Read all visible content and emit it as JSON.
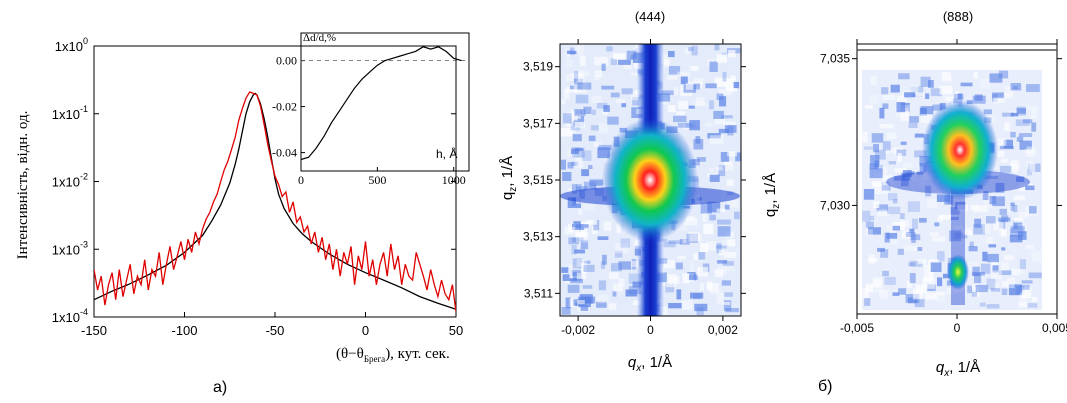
{
  "chart_data": [
    {
      "type": "line",
      "panel_label": "a)",
      "ylabel": "Інтенсивність, відн. од.",
      "xlabel_prefix": "(θ−θ",
      "xlabel_subscript": "Брега",
      "xlabel_suffix": "), кут. сек.",
      "xlim": [
        -150,
        50
      ],
      "ylim": [
        0.0001,
        1
      ],
      "yscale": "log",
      "xticks": [
        "-150",
        "-100",
        "-50",
        "0",
        "50"
      ],
      "yticks": [
        {
          "base": "1x10",
          "exp": "0"
        },
        {
          "base": "1x10",
          "exp": "-1"
        },
        {
          "base": "1x10",
          "exp": "-2"
        },
        {
          "base": "1x10",
          "exp": "-3"
        },
        {
          "base": "1x10",
          "exp": "-4"
        }
      ],
      "series": [
        {
          "color": "#000000",
          "x": [
            -150,
            -140,
            -130,
            -120,
            -110,
            -100,
            -90,
            -85,
            -80,
            -75,
            -72,
            -70,
            -68,
            -66,
            -64,
            -62,
            -61,
            -60,
            -58,
            -56,
            -54,
            -52,
            -50,
            -48,
            -45,
            -40,
            -35,
            -30,
            -20,
            -10,
            0,
            10,
            20,
            30,
            40,
            50
          ],
          "y": [
            0.00018,
            0.00024,
            0.00031,
            0.00042,
            0.00058,
            0.0009,
            0.0016,
            0.0026,
            0.0045,
            0.0095,
            0.018,
            0.03,
            0.055,
            0.1,
            0.15,
            0.19,
            0.2,
            0.19,
            0.14,
            0.085,
            0.045,
            0.022,
            0.011,
            0.0065,
            0.004,
            0.0024,
            0.0017,
            0.0013,
            0.00085,
            0.0006,
            0.00045,
            0.00035,
            0.00027,
            0.0002,
            0.00016,
            0.00013
          ]
        },
        {
          "color": "#e00000",
          "x": [
            -150,
            -148,
            -146,
            -144,
            -142,
            -140,
            -138,
            -136,
            -134,
            -132,
            -130,
            -128,
            -126,
            -124,
            -122,
            -120,
            -118,
            -116,
            -114,
            -112,
            -110,
            -108,
            -106,
            -104,
            -102,
            -100,
            -98,
            -96,
            -94,
            -92,
            -90,
            -88,
            -86,
            -84,
            -82,
            -80,
            -78,
            -76,
            -74,
            -72,
            -70,
            -68,
            -66,
            -64,
            -62,
            -60,
            -58,
            -56,
            -54,
            -52,
            -50,
            -48,
            -46,
            -44,
            -42,
            -40,
            -38,
            -36,
            -34,
            -32,
            -30,
            -28,
            -26,
            -24,
            -22,
            -20,
            -18,
            -16,
            -14,
            -12,
            -10,
            -8,
            -6,
            -4,
            -2,
            0,
            2,
            4,
            6,
            8,
            10,
            12,
            14,
            16,
            18,
            20,
            22,
            24,
            26,
            28,
            30,
            32,
            34,
            36,
            38,
            40,
            42,
            44,
            46,
            48,
            50
          ],
          "y": [
            0.0005,
            0.00025,
            0.0004,
            0.00015,
            0.0003,
            0.00045,
            0.00018,
            0.0005,
            0.0002,
            0.00035,
            0.0006,
            0.00022,
            0.0004,
            0.0003,
            0.0007,
            0.00025,
            0.0005,
            0.0004,
            0.0009,
            0.0003,
            0.0006,
            0.0011,
            0.0005,
            0.0008,
            0.0013,
            0.0007,
            0.0014,
            0.0009,
            0.0018,
            0.0012,
            0.002,
            0.0028,
            0.0035,
            0.005,
            0.0065,
            0.01,
            0.015,
            0.02,
            0.03,
            0.045,
            0.08,
            0.12,
            0.17,
            0.21,
            0.2,
            0.19,
            0.13,
            0.07,
            0.035,
            0.02,
            0.012,
            0.009,
            0.006,
            0.007,
            0.0035,
            0.005,
            0.0025,
            0.003,
            0.0018,
            0.0022,
            0.0012,
            0.0018,
            0.0009,
            0.0015,
            0.0007,
            0.0012,
            0.0005,
            0.001,
            0.0004,
            0.0009,
            0.0006,
            0.0011,
            0.0003,
            0.0008,
            0.0005,
            0.0013,
            0.0004,
            0.0007,
            0.0003,
            0.0006,
            0.0009,
            0.0004,
            0.0012,
            0.0005,
            0.0008,
            0.0003,
            0.0006,
            0.0004,
            0.00035,
            0.0009,
            0.0006,
            0.0004,
            0.00025,
            0.0005,
            0.0003,
            0.0002,
            0.00035,
            0.00022,
            0.00018,
            0.0003,
            0.00012
          ]
        }
      ],
      "inset": {
        "type": "line",
        "ylabel": "Δd/d,%",
        "xlabel": "h, Å",
        "xlim": [
          0,
          1100
        ],
        "ylim": [
          -0.048,
          0.012
        ],
        "xticks": [
          "0",
          "500",
          "1000"
        ],
        "yticks": [
          "0.00",
          "-0.02",
          "-0.04"
        ],
        "reference_line": 0,
        "series": [
          {
            "color": "#000000",
            "x": [
              0,
              50,
              100,
              150,
              200,
              250,
              300,
              350,
              400,
              450,
              500,
              550,
              600,
              650,
              700,
              750,
              800,
              850,
              900,
              950,
              1000,
              1050
            ],
            "y": [
              -0.043,
              -0.042,
              -0.038,
              -0.033,
              -0.027,
              -0.022,
              -0.017,
              -0.012,
              -0.008,
              -0.005,
              -0.002,
              0.0,
              0.001,
              0.002,
              0.003,
              0.004,
              0.006,
              0.005,
              0.006,
              0.004,
              0.001,
              0.0
            ]
          }
        ]
      }
    },
    {
      "type": "heatmap",
      "title": "(444)",
      "xlabel": "q",
      "xlabel_sub": "x",
      "xlabel_unit": ", 1/Å",
      "ylabel": "q",
      "ylabel_sub": "z",
      "ylabel_unit": ", 1/Å",
      "xlim": [
        -0.0025,
        0.0025
      ],
      "ylim": [
        3.5102,
        3.5198
      ],
      "xticks": [
        "-0,002",
        "0",
        "0,002"
      ],
      "yticks": [
        "3,519",
        "3,517",
        "3,515",
        "3,513",
        "3,511"
      ],
      "peak": {
        "qx": 0.0,
        "qz": 3.5152
      }
    },
    {
      "type": "heatmap",
      "title": "(888)",
      "panel_label": "б)",
      "xlabel": "q",
      "xlabel_sub": "x",
      "xlabel_unit": ", 1/Å",
      "ylabel": "q",
      "ylabel_sub": "z",
      "ylabel_unit": ", 1/Å",
      "xlim": [
        -0.005,
        0.005
      ],
      "ylim": [
        7.0263,
        7.0355
      ],
      "xticks": [
        "-0,005",
        "0",
        "0,005"
      ],
      "yticks": [
        "7,035",
        "7,030"
      ],
      "peaks": [
        {
          "qx": 0.0,
          "qz": 7.0322
        },
        {
          "qx": 0.0,
          "qz": 7.0275
        }
      ]
    }
  ]
}
